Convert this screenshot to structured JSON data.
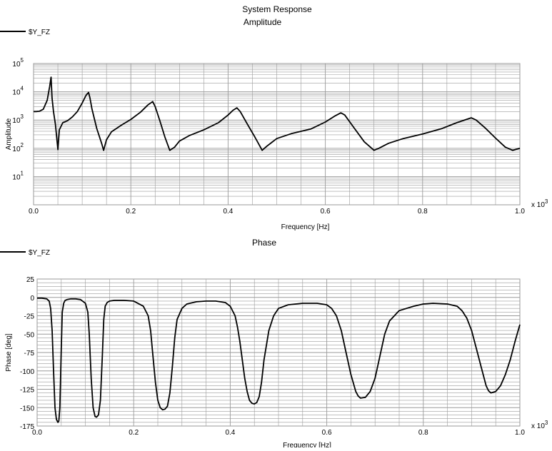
{
  "page_title": "System Response",
  "colors": {
    "background": "#ffffff",
    "plot_background": "#ffffff",
    "grid": "#9a9a9a",
    "frame": "#9a9a9a",
    "series": "#000000"
  },
  "chart_data": [
    {
      "type": "line",
      "title": "Amplitude",
      "xlabel": "Frequency [Hz]",
      "ylabel": "Amplitude",
      "x_multiplier_label": "x 10",
      "x_multiplier_exponent": "3",
      "xscale": "linear",
      "yscale": "log",
      "xlim": [
        0,
        1
      ],
      "ylim": [
        1,
        100000
      ],
      "grid": true,
      "legend": "top-left",
      "x_tick_labels": [
        "0.0",
        "0.2",
        "0.4",
        "0.6",
        "0.8",
        "1.0"
      ],
      "y_tick_labels": [
        {
          "base": "10",
          "exp": "1"
        },
        {
          "base": "10",
          "exp": "2"
        },
        {
          "base": "10",
          "exp": "3"
        },
        {
          "base": "10",
          "exp": "4"
        },
        {
          "base": "10",
          "exp": "5"
        }
      ],
      "series": [
        {
          "name": "$Y_FZ",
          "color": "#000000",
          "x": [
            0.0,
            0.005,
            0.012,
            0.02,
            0.028,
            0.033,
            0.036,
            0.038,
            0.041,
            0.045,
            0.05,
            0.053,
            0.06,
            0.07,
            0.08,
            0.09,
            0.1,
            0.108,
            0.113,
            0.116,
            0.12,
            0.13,
            0.14,
            0.144,
            0.15,
            0.16,
            0.18,
            0.2,
            0.22,
            0.235,
            0.245,
            0.25,
            0.26,
            0.27,
            0.28,
            0.29,
            0.3,
            0.32,
            0.35,
            0.38,
            0.4,
            0.41,
            0.418,
            0.425,
            0.44,
            0.455,
            0.47,
            0.48,
            0.5,
            0.53,
            0.57,
            0.6,
            0.62,
            0.632,
            0.64,
            0.66,
            0.68,
            0.7,
            0.71,
            0.73,
            0.76,
            0.8,
            0.84,
            0.87,
            0.89,
            0.9,
            0.91,
            0.93,
            0.95,
            0.97,
            0.985,
            1.0
          ],
          "y": [
            2000,
            2000,
            2050,
            2400,
            5000,
            15000,
            33000,
            6000,
            2000,
            700,
            90,
            450,
            800,
            950,
            1300,
            2000,
            4000,
            7500,
            9500,
            6000,
            2500,
            500,
            150,
            85,
            200,
            380,
            650,
            1050,
            1900,
            3400,
            4500,
            3000,
            900,
            250,
            85,
            110,
            180,
            280,
            450,
            800,
            1500,
            2200,
            2700,
            2000,
            700,
            250,
            85,
            120,
            220,
            330,
            480,
            850,
            1400,
            1800,
            1500,
            500,
            170,
            85,
            100,
            150,
            220,
            320,
            500,
            800,
            1050,
            1200,
            1000,
            500,
            230,
            110,
            85,
            100
          ]
        }
      ]
    },
    {
      "type": "line",
      "title": "Phase",
      "xlabel": "Frequency [Hz]",
      "ylabel": "Phase [deg]",
      "x_multiplier_label": "x 10",
      "x_multiplier_exponent": "3",
      "xscale": "linear",
      "yscale": "linear",
      "xlim": [
        0,
        1
      ],
      "ylim": [
        -175,
        25
      ],
      "grid": true,
      "legend": "top-left",
      "x_tick_labels": [
        "0.0",
        "0.2",
        "0.4",
        "0.6",
        "0.8",
        "1.0"
      ],
      "y_tick_values": [
        25,
        0,
        -25,
        -50,
        -75,
        -100,
        -125,
        -150,
        -175
      ],
      "y_tick_labels": [
        "25",
        "0",
        "-25",
        "-50",
        "-75",
        "-100",
        "-125",
        "-150",
        "-175"
      ],
      "series": [
        {
          "name": "$Y_FZ",
          "color": "#000000",
          "x": [
            0.0,
            0.01,
            0.02,
            0.025,
            0.028,
            0.031,
            0.034,
            0.037,
            0.04,
            0.043,
            0.045,
            0.047,
            0.05,
            0.052,
            0.055,
            0.058,
            0.062,
            0.07,
            0.08,
            0.09,
            0.1,
            0.105,
            0.108,
            0.112,
            0.116,
            0.12,
            0.123,
            0.127,
            0.131,
            0.135,
            0.138,
            0.141,
            0.145,
            0.15,
            0.16,
            0.18,
            0.2,
            0.22,
            0.23,
            0.235,
            0.24,
            0.245,
            0.25,
            0.255,
            0.26,
            0.265,
            0.27,
            0.275,
            0.28,
            0.285,
            0.29,
            0.3,
            0.31,
            0.33,
            0.35,
            0.37,
            0.39,
            0.4,
            0.41,
            0.415,
            0.42,
            0.425,
            0.43,
            0.435,
            0.44,
            0.445,
            0.45,
            0.455,
            0.46,
            0.465,
            0.47,
            0.48,
            0.49,
            0.5,
            0.52,
            0.55,
            0.58,
            0.6,
            0.61,
            0.62,
            0.63,
            0.64,
            0.65,
            0.66,
            0.665,
            0.67,
            0.68,
            0.69,
            0.7,
            0.71,
            0.72,
            0.73,
            0.75,
            0.78,
            0.8,
            0.82,
            0.85,
            0.87,
            0.88,
            0.89,
            0.9,
            0.91,
            0.92,
            0.93,
            0.935,
            0.94,
            0.95,
            0.96,
            0.97,
            0.98,
            0.99,
            1.0
          ],
          "y": [
            -1,
            -1,
            -2,
            -5,
            -15,
            -45,
            -100,
            -150,
            -166,
            -170,
            -168,
            -150,
            -70,
            -20,
            -8,
            -4,
            -3,
            -2,
            -2,
            -3,
            -8,
            -20,
            -50,
            -110,
            -150,
            -162,
            -163,
            -160,
            -140,
            -80,
            -30,
            -12,
            -7,
            -5,
            -4,
            -4,
            -5,
            -12,
            -25,
            -45,
            -80,
            -115,
            -140,
            -150,
            -153,
            -152,
            -148,
            -130,
            -95,
            -55,
            -30,
            -15,
            -9,
            -6,
            -5,
            -5,
            -7,
            -12,
            -25,
            -40,
            -60,
            -85,
            -110,
            -128,
            -140,
            -144,
            -145,
            -143,
            -135,
            -115,
            -85,
            -45,
            -25,
            -15,
            -10,
            -8,
            -8,
            -10,
            -15,
            -25,
            -45,
            -75,
            -105,
            -128,
            -134,
            -137,
            -136,
            -128,
            -110,
            -80,
            -50,
            -32,
            -18,
            -12,
            -9,
            -8,
            -9,
            -12,
            -18,
            -28,
            -45,
            -70,
            -95,
            -120,
            -127,
            -130,
            -128,
            -120,
            -105,
            -85,
            -60,
            -37
          ]
        }
      ]
    }
  ]
}
